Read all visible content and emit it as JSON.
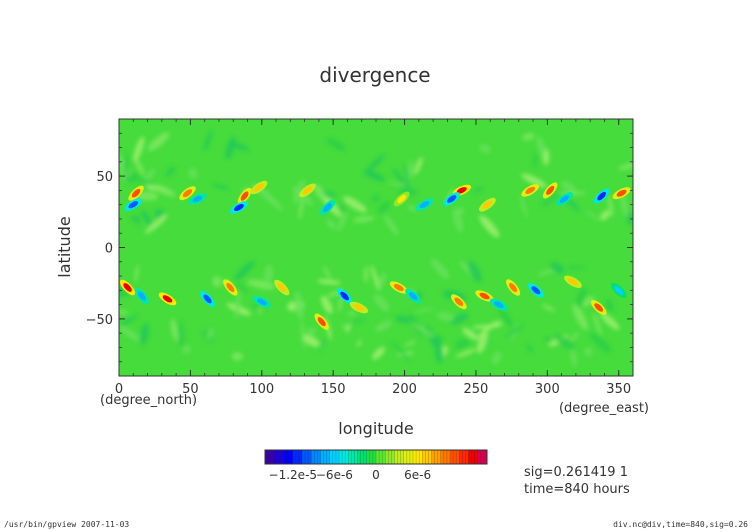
{
  "chart_data": {
    "type": "heatmap",
    "title": "divergence",
    "xlabel": "longitude",
    "ylabel": "latitude",
    "x_units": "(degree_east)",
    "y_units": "(degree_north)",
    "xlim": [
      0,
      360
    ],
    "ylim": [
      -90,
      90
    ],
    "x_ticks": [
      0,
      50,
      100,
      150,
      200,
      250,
      300,
      350
    ],
    "y_ticks": [
      -50,
      0,
      50
    ],
    "x_tick_labels": [
      "0",
      "50",
      "100",
      "150",
      "200",
      "250",
      "300",
      "350"
    ],
    "y_tick_labels": [
      "−50",
      "0",
      "50"
    ],
    "colorbar": {
      "range": [
        -1.6e-05,
        1.6e-05
      ],
      "tick_values": [
        -1.2e-05,
        -6e-06,
        0,
        6e-06
      ],
      "tick_labels": [
        "−1.2e-5",
        "−6e-6",
        "0",
        "6e-6"
      ],
      "colors": [
        "#3a00a8",
        "#1f00d8",
        "#0000ff",
        "#0028ff",
        "#0058ff",
        "#0088ff",
        "#00b0ff",
        "#00d2ff",
        "#00e8e0",
        "#00e8a8",
        "#00e070",
        "#20e040",
        "#58e830",
        "#90e828",
        "#c0ec20",
        "#e0ee10",
        "#ffe800",
        "#ffc800",
        "#ffa000",
        "#ff7800",
        "#ff5000",
        "#ff2800",
        "#ee0000",
        "#d80050"
      ]
    },
    "vortices": [
      {
        "lon": 12,
        "lat": 38,
        "value": 1.2e-05
      },
      {
        "lon": 10,
        "lat": 30,
        "value": -1e-05
      },
      {
        "lon": 48,
        "lat": 38,
        "value": 1e-05
      },
      {
        "lon": 55,
        "lat": 34,
        "value": -8e-06
      },
      {
        "lon": 88,
        "lat": 36,
        "value": 1.2e-05
      },
      {
        "lon": 84,
        "lat": 28,
        "value": -1.2e-05
      },
      {
        "lon": 98,
        "lat": 42,
        "value": 8e-06
      },
      {
        "lon": 132,
        "lat": 40,
        "value": 8e-06
      },
      {
        "lon": 146,
        "lat": 28,
        "value": -8e-06
      },
      {
        "lon": 198,
        "lat": 34,
        "value": 6e-06
      },
      {
        "lon": 214,
        "lat": 30,
        "value": -8e-06
      },
      {
        "lon": 240,
        "lat": 40,
        "value": 1.4e-05
      },
      {
        "lon": 233,
        "lat": 34,
        "value": -1e-05
      },
      {
        "lon": 258,
        "lat": 30,
        "value": 8e-06
      },
      {
        "lon": 288,
        "lat": 40,
        "value": 1e-05
      },
      {
        "lon": 302,
        "lat": 40,
        "value": 1.2e-05
      },
      {
        "lon": 312,
        "lat": 34,
        "value": -8e-06
      },
      {
        "lon": 338,
        "lat": 36,
        "value": -1.2e-05
      },
      {
        "lon": 352,
        "lat": 38,
        "value": 1.2e-05
      },
      {
        "lon": 6,
        "lat": -28,
        "value": 1.4e-05
      },
      {
        "lon": 16,
        "lat": -34,
        "value": -8e-06
      },
      {
        "lon": 34,
        "lat": -36,
        "value": 1.4e-05
      },
      {
        "lon": 62,
        "lat": -36,
        "value": -1e-05
      },
      {
        "lon": 78,
        "lat": -28,
        "value": 1e-05
      },
      {
        "lon": 100,
        "lat": -38,
        "value": -8e-06
      },
      {
        "lon": 114,
        "lat": -28,
        "value": 8e-06
      },
      {
        "lon": 142,
        "lat": -52,
        "value": 1.2e-05
      },
      {
        "lon": 158,
        "lat": -34,
        "value": -1.2e-05
      },
      {
        "lon": 168,
        "lat": -42,
        "value": 8e-06
      },
      {
        "lon": 196,
        "lat": -28,
        "value": 1e-05
      },
      {
        "lon": 206,
        "lat": -34,
        "value": -8e-06
      },
      {
        "lon": 238,
        "lat": -38,
        "value": 1e-05
      },
      {
        "lon": 256,
        "lat": -34,
        "value": 1.2e-05
      },
      {
        "lon": 266,
        "lat": -40,
        "value": -8e-06
      },
      {
        "lon": 276,
        "lat": -28,
        "value": 1e-05
      },
      {
        "lon": 292,
        "lat": -30,
        "value": -1e-05
      },
      {
        "lon": 318,
        "lat": -24,
        "value": 8e-06
      },
      {
        "lon": 336,
        "lat": -42,
        "value": 1.2e-05
      },
      {
        "lon": 350,
        "lat": -30,
        "value": -6e-06
      }
    ]
  },
  "info": {
    "sig": "sig=0.261419 1",
    "time": "time=840 hours"
  },
  "footer": {
    "left": "/usr/bin/gpview  2007-11-03",
    "right": "div.nc@div,time=840,sig=0.26"
  }
}
